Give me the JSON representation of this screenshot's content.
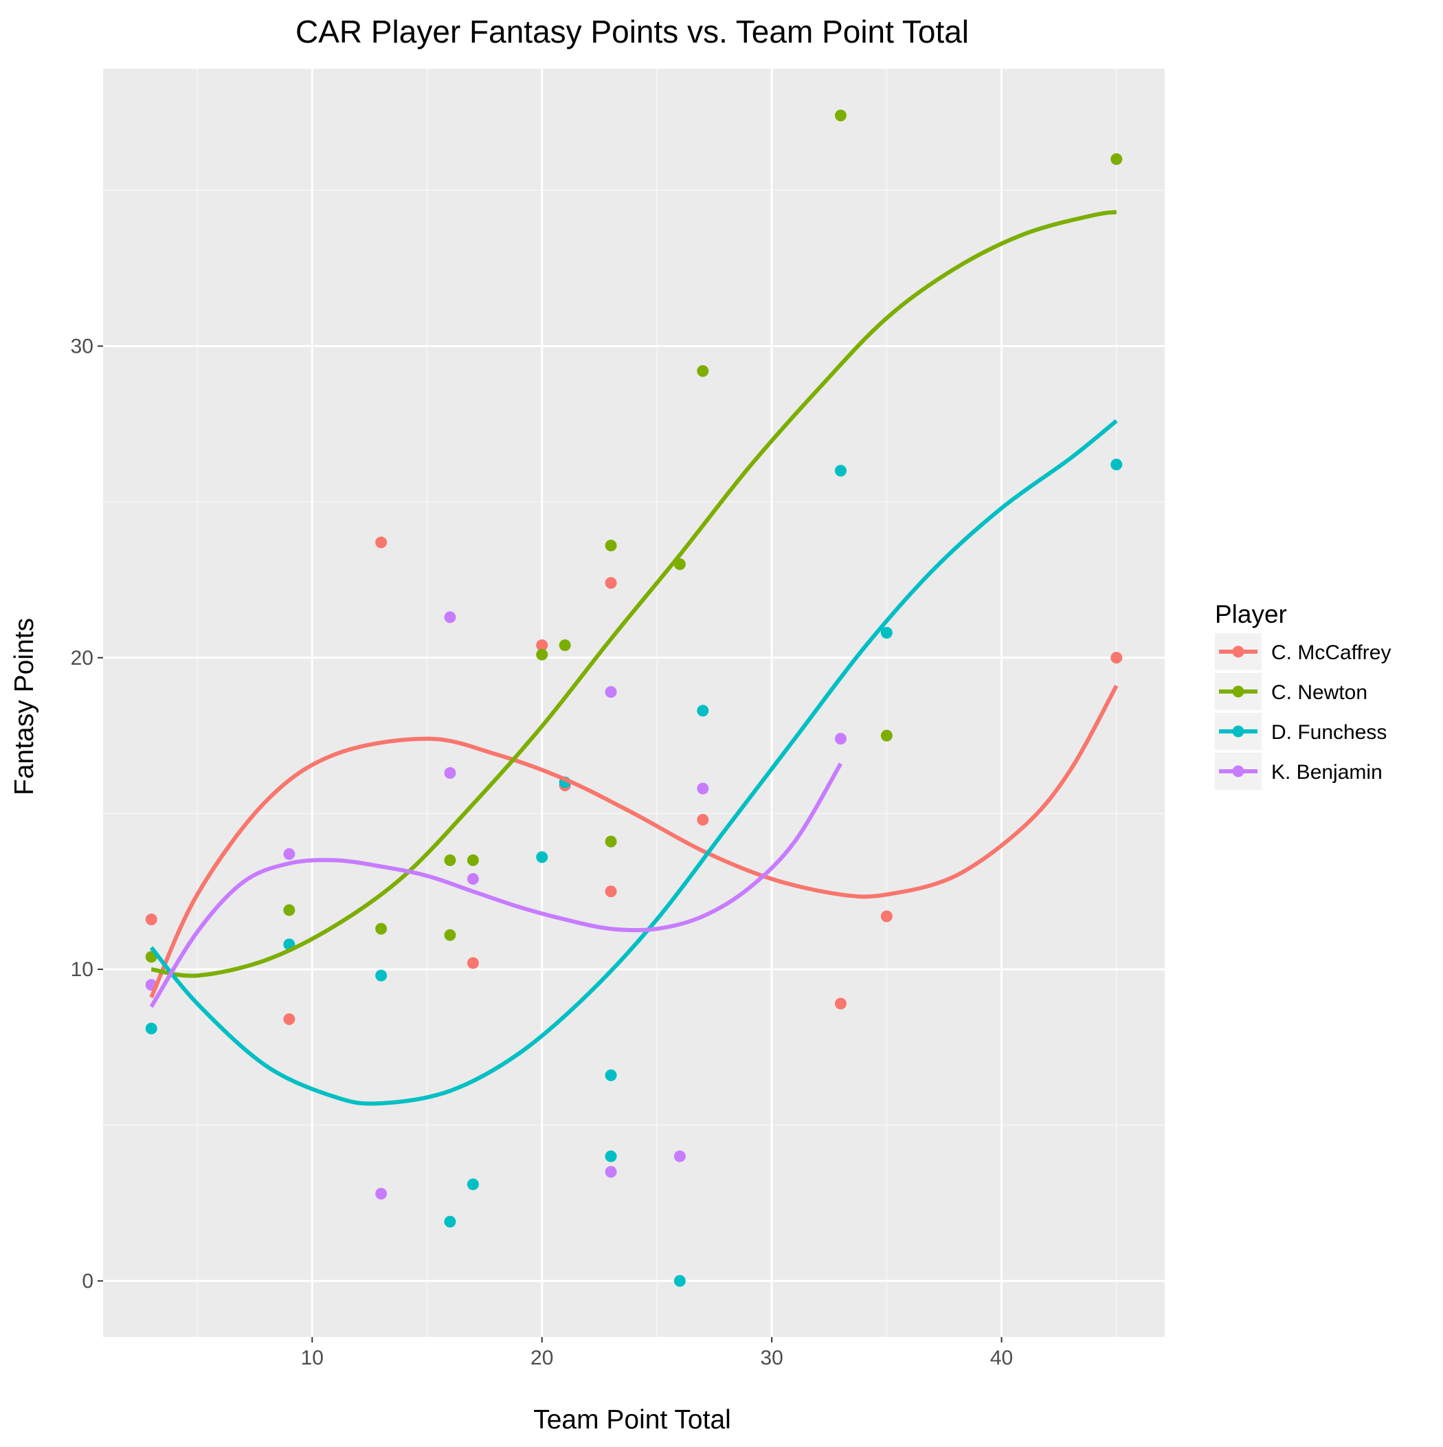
{
  "chart_data": {
    "type": "scatter",
    "title": "CAR Player Fantasy Points vs. Team Point Total",
    "xlabel": "Team Point Total",
    "ylabel": "Fantasy Points",
    "xlim": [
      0.9,
      47.1
    ],
    "ylim": [
      -1.8,
      38.9
    ],
    "x_ticks": [
      10,
      20,
      30,
      40
    ],
    "y_ticks": [
      0,
      10,
      20,
      30
    ],
    "grid": true,
    "legend": {
      "title": "Player",
      "position": "right"
    },
    "series": [
      {
        "name": "C. McCaffrey",
        "color": "#F8766D",
        "points": [
          [
            3,
            11.6
          ],
          [
            9,
            8.4
          ],
          [
            13,
            23.7
          ],
          [
            17,
            10.2
          ],
          [
            20,
            20.4
          ],
          [
            21,
            15.9
          ],
          [
            23,
            22.4
          ],
          [
            23,
            12.5
          ],
          [
            27,
            14.8
          ],
          [
            33,
            8.9
          ],
          [
            35,
            11.7
          ],
          [
            45,
            20.0
          ]
        ],
        "smooth": [
          [
            3,
            9.1
          ],
          [
            5,
            12.4
          ],
          [
            8,
            15.4
          ],
          [
            11,
            16.9
          ],
          [
            15,
            17.4
          ],
          [
            18,
            16.9
          ],
          [
            21,
            16.1
          ],
          [
            24,
            15.0
          ],
          [
            27,
            13.8
          ],
          [
            30,
            12.9
          ],
          [
            33,
            12.4
          ],
          [
            35,
            12.4
          ],
          [
            38,
            13.0
          ],
          [
            41,
            14.6
          ],
          [
            43,
            16.4
          ],
          [
            45,
            19.1
          ]
        ]
      },
      {
        "name": "C. Newton",
        "color": "#7CAE00",
        "points": [
          [
            3,
            10.4
          ],
          [
            9,
            11.9
          ],
          [
            13,
            11.3
          ],
          [
            16,
            11.1
          ],
          [
            16,
            13.5
          ],
          [
            17,
            13.5
          ],
          [
            20,
            20.1
          ],
          [
            21,
            20.4
          ],
          [
            23,
            23.6
          ],
          [
            23,
            14.1
          ],
          [
            26,
            23.0
          ],
          [
            27,
            29.2
          ],
          [
            33,
            37.4
          ],
          [
            35,
            17.5
          ],
          [
            45,
            36.0
          ]
        ],
        "smooth": [
          [
            3,
            10.0
          ],
          [
            5,
            9.8
          ],
          [
            8,
            10.3
          ],
          [
            11,
            11.4
          ],
          [
            14,
            13.0
          ],
          [
            17,
            15.3
          ],
          [
            20,
            17.8
          ],
          [
            23,
            20.6
          ],
          [
            26,
            23.3
          ],
          [
            29,
            26.1
          ],
          [
            32,
            28.6
          ],
          [
            35,
            30.9
          ],
          [
            38,
            32.5
          ],
          [
            41,
            33.6
          ],
          [
            44,
            34.2
          ],
          [
            45,
            34.3
          ]
        ]
      },
      {
        "name": "D. Funchess",
        "color": "#00BFC4",
        "points": [
          [
            3,
            8.1
          ],
          [
            9,
            10.8
          ],
          [
            13,
            9.8
          ],
          [
            16,
            1.9
          ],
          [
            17,
            3.1
          ],
          [
            20,
            13.6
          ],
          [
            21,
            16.0
          ],
          [
            23,
            6.6
          ],
          [
            23,
            4.0
          ],
          [
            26,
            0.0
          ],
          [
            27,
            18.3
          ],
          [
            33,
            26.0
          ],
          [
            35,
            20.8
          ],
          [
            45,
            26.2
          ]
        ],
        "smooth": [
          [
            3,
            10.7
          ],
          [
            5,
            8.9
          ],
          [
            8,
            6.9
          ],
          [
            11,
            5.9
          ],
          [
            13,
            5.7
          ],
          [
            16,
            6.1
          ],
          [
            19,
            7.3
          ],
          [
            22,
            9.2
          ],
          [
            25,
            11.6
          ],
          [
            28,
            14.5
          ],
          [
            31,
            17.4
          ],
          [
            34,
            20.3
          ],
          [
            37,
            22.8
          ],
          [
            40,
            24.8
          ],
          [
            43,
            26.4
          ],
          [
            45,
            27.6
          ]
        ]
      },
      {
        "name": "K. Benjamin",
        "color": "#C77CFF",
        "points": [
          [
            3,
            9.5
          ],
          [
            9,
            13.7
          ],
          [
            13,
            2.8
          ],
          [
            16,
            21.3
          ],
          [
            16,
            16.3
          ],
          [
            17,
            12.9
          ],
          [
            23,
            18.9
          ],
          [
            23,
            3.5
          ],
          [
            26,
            4.0
          ],
          [
            27,
            15.8
          ],
          [
            33,
            17.4
          ]
        ],
        "smooth": [
          [
            3,
            8.8
          ],
          [
            5,
            11.2
          ],
          [
            7,
            12.8
          ],
          [
            9,
            13.4
          ],
          [
            11,
            13.5
          ],
          [
            13,
            13.3
          ],
          [
            15,
            13.0
          ],
          [
            17,
            12.5
          ],
          [
            19,
            12.0
          ],
          [
            21,
            11.6
          ],
          [
            23,
            11.3
          ],
          [
            25,
            11.3
          ],
          [
            27,
            11.7
          ],
          [
            29,
            12.6
          ],
          [
            31,
            14.1
          ],
          [
            33,
            16.6
          ]
        ]
      }
    ]
  }
}
